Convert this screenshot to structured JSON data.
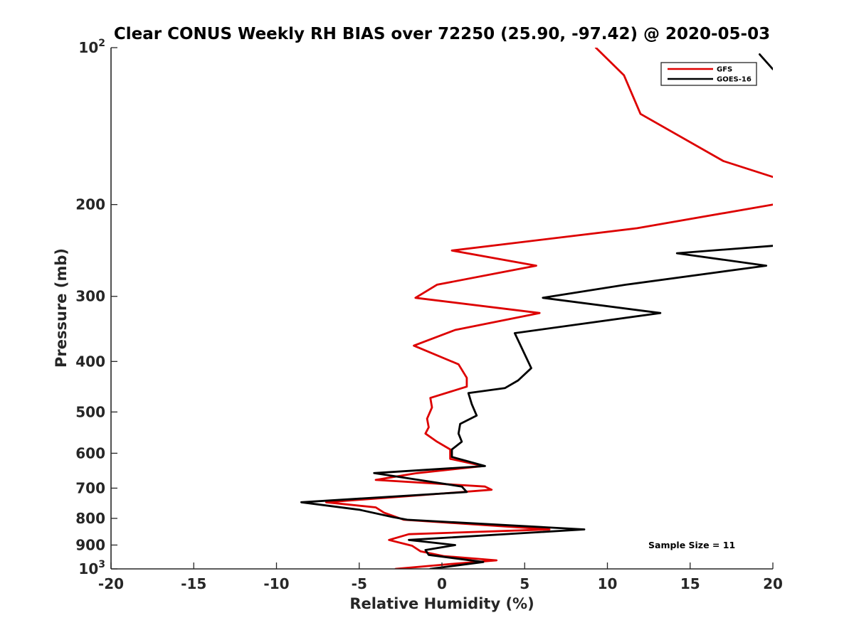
{
  "chart_data": {
    "type": "line",
    "title": "Clear CONUS Weekly RH BIAS over 72250 (25.90, -97.42) @ 2020-05-03",
    "xlabel": "Relative Humidity (%)",
    "ylabel": "Pressure (mb)",
    "xlim": [
      -20,
      20
    ],
    "ylim": [
      100,
      1000
    ],
    "yscale": "log",
    "y_reversed": true,
    "grid": false,
    "legend_position": "top-right",
    "x_ticks": [
      -20,
      -15,
      -10,
      -5,
      0,
      5,
      10,
      15,
      20
    ],
    "x_tick_labels": [
      "-20",
      "-15",
      "-10",
      "-5",
      "0",
      "5",
      "10",
      "15",
      "20"
    ],
    "y_ticks": [
      100,
      200,
      300,
      400,
      500,
      600,
      700,
      800,
      900,
      1000
    ],
    "y_tick_labels": [
      {
        "base": "10",
        "exp": "2"
      },
      {
        "base": "200",
        "exp": ""
      },
      {
        "base": "300",
        "exp": ""
      },
      {
        "base": "400",
        "exp": ""
      },
      {
        "base": "500",
        "exp": ""
      },
      {
        "base": "600",
        "exp": ""
      },
      {
        "base": "700",
        "exp": ""
      },
      {
        "base": "800",
        "exp": ""
      },
      {
        "base": "900",
        "exp": ""
      },
      {
        "base": "10",
        "exp": "3"
      }
    ],
    "series": [
      {
        "name": "GFS",
        "color": "#dd0000",
        "x": [
          9.3,
          11.0,
          12.0,
          17.0,
          20.0,
          null,
          20.0,
          11.8,
          0.6,
          5.7,
          -0.3,
          -1.6,
          5.9,
          0.8,
          -1.7,
          1.0,
          1.5,
          1.5,
          -0.7,
          -0.6,
          -0.9,
          -0.8,
          -1.0,
          -0.3,
          0.5,
          0.5,
          2.5,
          -1.5,
          -4.0,
          2.6,
          3.0,
          -2.0,
          -7.0,
          -4.0,
          -3.5,
          -2.3,
          6.5,
          -2.0,
          -3.2,
          -1.8,
          -1.3,
          0.1,
          3.3,
          0.3,
          -2.8
        ],
        "y": [
          100,
          113,
          134,
          165,
          177,
          null,
          200,
          222,
          245,
          262,
          285,
          302,
          323,
          348,
          373,
          405,
          430,
          447,
          470,
          490,
          515,
          535,
          550,
          570,
          590,
          615,
          635,
          655,
          675,
          695,
          705,
          725,
          745,
          762,
          780,
          805,
          840,
          858,
          880,
          903,
          925,
          945,
          963,
          980,
          1000
        ]
      },
      {
        "name": "GOES-16",
        "color": "#000000",
        "x": [
          19.2,
          20.0,
          null,
          20.0,
          14.2,
          19.6,
          11.1,
          6.1,
          13.2,
          4.4,
          5.4,
          4.6,
          3.8,
          1.6,
          1.8,
          2.1,
          1.1,
          1.0,
          1.2,
          0.6,
          0.6,
          2.6,
          -4.1,
          1.2,
          1.5,
          -2.5,
          -8.5,
          -5.0,
          -3.0,
          -2.1,
          8.6,
          -2.0,
          0.8,
          -1.0,
          -0.8,
          2.5,
          -0.7
        ],
        "y": [
          103,
          110,
          null,
          240,
          248,
          262,
          285,
          302,
          323,
          353,
          412,
          435,
          450,
          460,
          483,
          508,
          527,
          550,
          570,
          590,
          610,
          635,
          655,
          695,
          712,
          725,
          745,
          770,
          795,
          805,
          840,
          880,
          900,
          920,
          940,
          970,
          1000
        ]
      }
    ],
    "annotations": [
      "Sample Size = 11"
    ]
  }
}
